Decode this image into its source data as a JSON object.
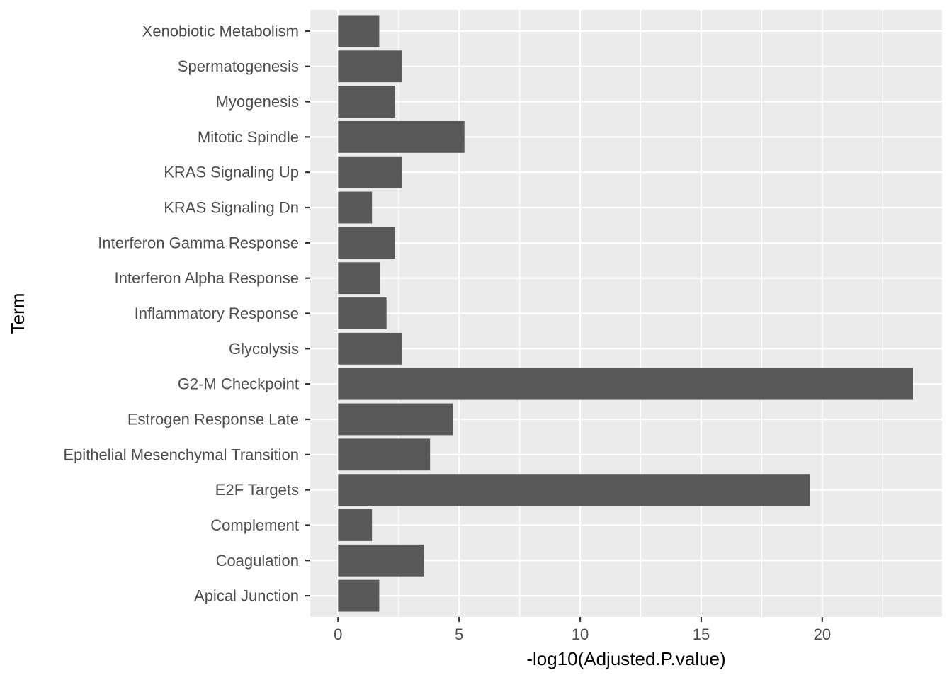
{
  "chart_data": {
    "type": "bar",
    "orientation": "horizontal",
    "categories": [
      "Apical Junction",
      "Coagulation",
      "Complement",
      "E2F Targets",
      "Epithelial Mesenchymal Transition",
      "Estrogen Response Late",
      "G2-M Checkpoint",
      "Glycolysis",
      "Inflammatory Response",
      "Interferon Alpha Response",
      "Interferon Gamma Response",
      "KRAS Signaling Dn",
      "KRAS Signaling Up",
      "Mitotic Spindle",
      "Myogenesis",
      "Spermatogenesis",
      "Xenobiotic Metabolism"
    ],
    "values": [
      1.7,
      3.55,
      1.4,
      19.5,
      3.8,
      4.75,
      23.75,
      2.65,
      2.0,
      1.72,
      2.35,
      1.4,
      2.65,
      5.22,
      2.35,
      2.65,
      1.7
    ],
    "xlabel": "-log10(Adjusted.P.value)",
    "ylabel": "Term",
    "xlim": [
      -1.15,
      24.95
    ],
    "x_ticks": [
      0,
      5,
      10,
      15,
      20
    ],
    "x_tick_labels": [
      "0",
      "5",
      "10",
      "15",
      "20"
    ],
    "grid": true,
    "colors": {
      "panel_background": "#ebebeb",
      "grid_major": "#ffffff",
      "bar_fill": "#595959",
      "tick_text": "#4d4d4d",
      "tick_mark": "#333333",
      "axis_title": "#000000"
    }
  }
}
